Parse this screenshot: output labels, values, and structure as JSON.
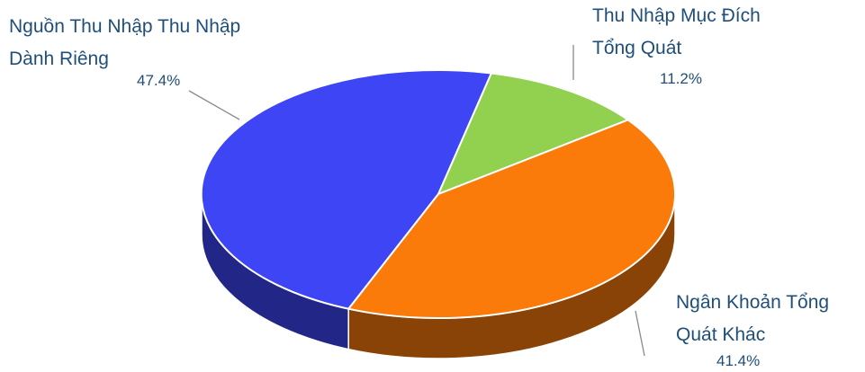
{
  "chart_data": {
    "type": "pie",
    "style": "3d",
    "slices": [
      {
        "label_lines": [
          "Nguồn Thu Nhập Thu Nhập",
          "Dành Riêng"
        ],
        "value": 47.4,
        "value_label": "47.4%",
        "color": "#3e45f5"
      },
      {
        "label_lines": [
          "Thu Nhập Mục Đích",
          "Tổng Quát"
        ],
        "value": 11.2,
        "value_label": "11.2%",
        "color": "#92d050"
      },
      {
        "label_lines": [
          "Ngân Khoản Tổng",
          "Quát Khác"
        ],
        "value": 41.4,
        "value_label": "41.4%",
        "color": "#fa7a0a"
      }
    ]
  }
}
